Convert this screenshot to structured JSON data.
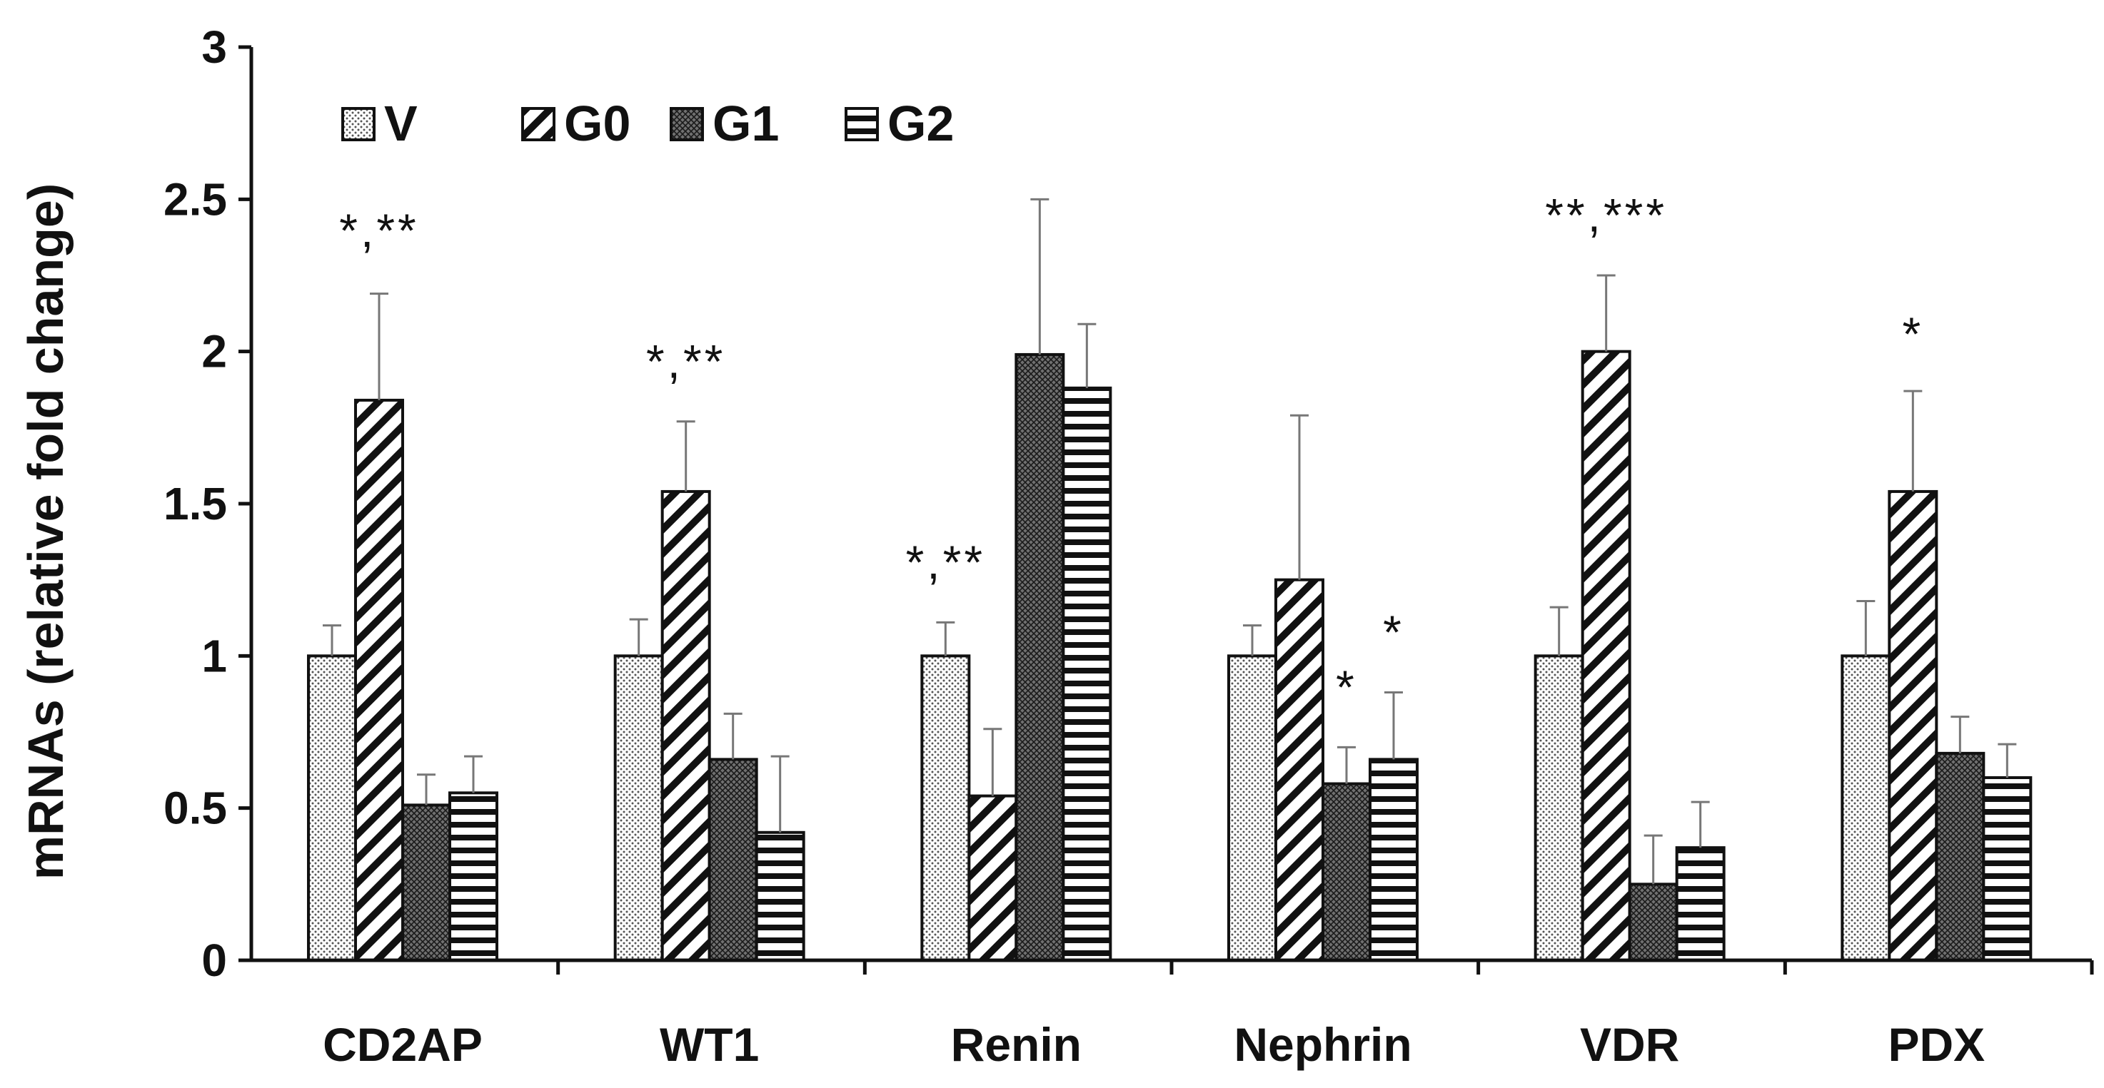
{
  "chart_data": {
    "type": "bar",
    "title": "",
    "xlabel": "",
    "ylabel": "mRNAs (relative fold change)",
    "ylim": [
      0,
      3
    ],
    "yticks": [
      "0",
      "0.5",
      "1",
      "1.5",
      "2",
      "2.5",
      "3"
    ],
    "yticks_values": [
      0,
      0.5,
      1,
      1.5,
      2,
      2.5,
      3
    ],
    "grid": false,
    "legend_position": "top-left",
    "categories": [
      "CD2AP",
      "WT1",
      "Renin",
      "Nephrin",
      "VDR",
      "PDX"
    ],
    "series": [
      {
        "name": "V",
        "pattern": "dots",
        "values": [
          1.0,
          1.0,
          1.0,
          1.0,
          1.0,
          1.0
        ],
        "errors": [
          0.1,
          0.12,
          0.11,
          0.1,
          0.16,
          0.18
        ]
      },
      {
        "name": "G0",
        "pattern": "diagonal",
        "values": [
          1.84,
          1.54,
          0.54,
          1.25,
          2.0,
          1.54
        ],
        "errors": [
          0.35,
          0.23,
          0.22,
          0.54,
          0.25,
          0.33
        ]
      },
      {
        "name": "G1",
        "pattern": "crosshatch",
        "values": [
          0.51,
          0.66,
          1.99,
          0.58,
          0.25,
          0.68
        ],
        "errors": [
          0.1,
          0.15,
          0.51,
          0.12,
          0.16,
          0.12
        ]
      },
      {
        "name": "G2",
        "pattern": "horizontal",
        "values": [
          0.55,
          0.42,
          1.88,
          0.66,
          0.37,
          0.6
        ],
        "errors": [
          0.12,
          0.25,
          0.21,
          0.22,
          0.15,
          0.11
        ]
      }
    ],
    "annotations": [
      {
        "text": "*,**",
        "category": "CD2AP",
        "series": "G0",
        "y": 2.4
      },
      {
        "text": "*,**",
        "category": "WT1",
        "series": "G0",
        "y": 1.97
      },
      {
        "text": "*,**",
        "category": "Renin",
        "series": "V",
        "y": 1.31
      },
      {
        "text": "*",
        "category": "Nephrin",
        "series": "G1",
        "y": 0.9
      },
      {
        "text": "*",
        "category": "Nephrin",
        "series": "G2",
        "y": 1.08
      },
      {
        "text": "**,***",
        "category": "VDR",
        "series": "G0",
        "y": 2.45
      },
      {
        "text": "*",
        "category": "PDX",
        "series": "G0",
        "y": 2.06
      }
    ]
  }
}
